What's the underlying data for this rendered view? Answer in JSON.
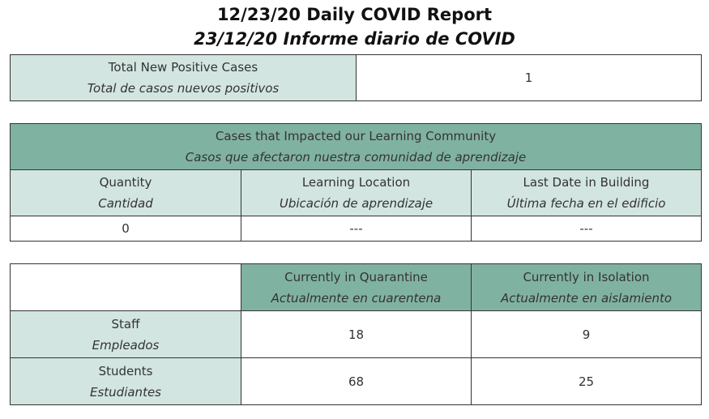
{
  "header": {
    "title": "12/23/20 Daily COVID Report",
    "subtitle": "23/12/20 Informe diario de COVID"
  },
  "total_cases": {
    "label": "Total New Positive Cases",
    "label_es": "Total de casos nuevos positivos",
    "value": 1
  },
  "impact_table": {
    "title": "Cases that Impacted our Learning Community",
    "title_es": "Casos que afectaron nuestra comunidad de aprendizaje",
    "columns": [
      {
        "label": "Quantity",
        "label_es": "Cantidad"
      },
      {
        "label": "Learning Location",
        "label_es": "Ubicación de aprendizaje"
      },
      {
        "label": "Last Date in Building",
        "label_es": "Última fecha en el edificio"
      }
    ],
    "rows": [
      [
        0,
        "---",
        "---"
      ]
    ]
  },
  "status_table": {
    "columns": [
      {
        "label": "Currently in Quarantine",
        "label_es": "Actualmente en cuarentena"
      },
      {
        "label": "Currently in Isolation",
        "label_es": "Actualmente en aislamiento"
      }
    ],
    "rows": [
      {
        "label": "Staff",
        "label_es": "Empleados",
        "values": [
          18,
          9
        ]
      },
      {
        "label": "Students",
        "label_es": "Estudiantes",
        "values": [
          68,
          25
        ]
      }
    ]
  }
}
